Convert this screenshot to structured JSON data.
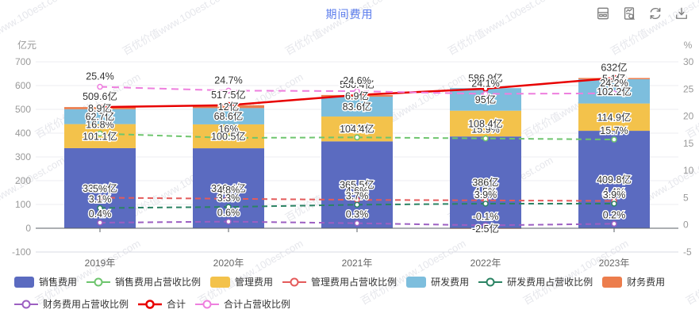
{
  "title": "期间费用",
  "colors": {
    "title": "#5b7cec"
  },
  "watermark": "百优价值www.100est.com",
  "toolbar": {
    "icons": [
      "data-view-icon",
      "report-icon",
      "refresh-icon",
      "download-icon"
    ]
  },
  "chart_data": {
    "type": "bar",
    "subtype": "stacked-bars-with-percentage-lines",
    "title": "期间费用",
    "categories": [
      "2019年",
      "2020年",
      "2021年",
      "2022年",
      "2023年"
    ],
    "left_axis": {
      "name": "亿元",
      "min": -100,
      "max": 700,
      "ticks": [
        700,
        600,
        500,
        400,
        300,
        200,
        100,
        0,
        -100
      ]
    },
    "right_axis": {
      "name": "%",
      "min": -5,
      "max": 30,
      "ticks": [
        30,
        25,
        20,
        15,
        10,
        5,
        0,
        -5
      ]
    },
    "grid": true,
    "legend_position": "bottom-left",
    "bar_series": [
      {
        "name": "销售费用",
        "color": "#5B6BC0",
        "values": [
          336.9,
          336.4,
          365.5,
          386,
          409.8
        ],
        "labels": [
          "336.9亿",
          "336.4亿",
          "365.5亿",
          "386亿",
          "409.8亿"
        ]
      },
      {
        "name": "管理费用",
        "color": "#F3C24B",
        "values": [
          101.1,
          100.5,
          104.4,
          108.4,
          114.9
        ],
        "labels": [
          "101.1亿",
          "100.5亿",
          "104.4亿",
          "108.4亿",
          "114.9亿"
        ]
      },
      {
        "name": "研发费用",
        "color": "#7DBEDD",
        "values": [
          62.7,
          68.6,
          83.6,
          95,
          102.2
        ],
        "labels": [
          "62.7亿",
          "68.6亿",
          "83.6亿",
          "95亿",
          "102.2亿"
        ]
      },
      {
        "name": "财务费用",
        "color": "#EC7D4C",
        "values": [
          8.9,
          12,
          6.9,
          -2.5,
          5.1
        ],
        "labels": [
          "8.9亿",
          "12亿",
          "6.9亿",
          "-2.5亿",
          "5.1亿"
        ]
      }
    ],
    "line_series": [
      {
        "name": "销售费用占营收比例",
        "color": "#6EC56E",
        "axis": "right",
        "dashed": true,
        "values": [
          16.8,
          16,
          16.1,
          15.9,
          15.7
        ],
        "labels": [
          "16.8%",
          "16%",
          "16.1%",
          "15.9%",
          "15.7%"
        ]
      },
      {
        "name": "管理费用占营收比例",
        "color": "#E45B5B",
        "axis": "right",
        "dashed": true,
        "values": [
          5,
          4.8,
          4.6,
          4.5,
          4.4
        ],
        "labels": [
          "5%",
          "4.8%",
          "4.6%",
          "4.5%",
          "4.4%"
        ]
      },
      {
        "name": "研发费用占营收比例",
        "color": "#2B8363",
        "axis": "right",
        "dashed": true,
        "values": [
          3.1,
          3.3,
          3.7,
          3.9,
          3.9
        ],
        "labels": [
          "3.1%",
          "3.3%",
          "3.7%",
          "3.9%",
          "3.9%"
        ]
      },
      {
        "name": "财务费用占营收比例",
        "color": "#9C5FC2",
        "axis": "right",
        "dashed": true,
        "values": [
          0.4,
          0.6,
          0.3,
          -0.1,
          0.2
        ],
        "labels": [
          "0.4%",
          "0.6%",
          "0.3%",
          "-0.1%",
          "0.2%"
        ]
      },
      {
        "name": "合计",
        "color": "#E80000",
        "axis": "left",
        "dashed": false,
        "values": [
          509.6,
          517.5,
          560.4,
          586.9,
          632
        ],
        "labels": [
          "509.6亿",
          "517.5亿",
          "560.4亿",
          "586.9亿",
          "632亿"
        ]
      },
      {
        "name": "合计占营收比例",
        "color": "#EE7FDE",
        "axis": "right",
        "dashed": true,
        "values": [
          25.4,
          24.7,
          24.6,
          24.1,
          24.2
        ],
        "labels": [
          "25.4%",
          "24.7%",
          "24.6%",
          "24.1%",
          "24.2%"
        ]
      }
    ],
    "legend_rows": [
      [
        "销售费用",
        "销售费用占营收比例",
        "管理费用",
        "管理费用占营收比例",
        "研发费用",
        "研发费用占营收比例",
        "财务费用"
      ],
      [
        "财务费用占营收比例",
        "合计",
        "合计占营收比例"
      ]
    ]
  }
}
